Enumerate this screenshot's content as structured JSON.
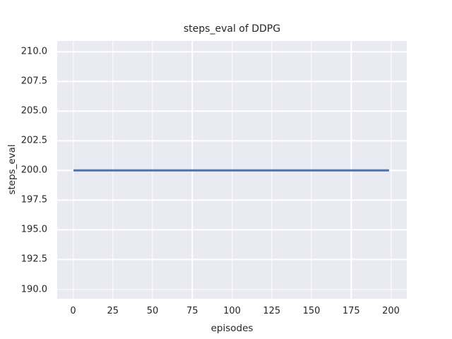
{
  "colors": {
    "figure_background": "#ffffff",
    "plot_background": "#eaeaf2",
    "grid": "#ffffff",
    "text": "#262626",
    "line": "#4c72b0"
  },
  "chart_data": {
    "type": "line",
    "title": "steps_eval of DDPG",
    "xlabel": "episodes",
    "ylabel": "steps_eval",
    "xlim": [
      -10,
      210
    ],
    "ylim": [
      189.2,
      210.9
    ],
    "grid": true,
    "legend_position": "none",
    "xticks": [
      {
        "value": 0,
        "label": "0"
      },
      {
        "value": 25,
        "label": "25"
      },
      {
        "value": 50,
        "label": "50"
      },
      {
        "value": 75,
        "label": "75"
      },
      {
        "value": 100,
        "label": "100"
      },
      {
        "value": 125,
        "label": "125"
      },
      {
        "value": 150,
        "label": "150"
      },
      {
        "value": 175,
        "label": "175"
      },
      {
        "value": 200,
        "label": "200"
      }
    ],
    "yticks": [
      {
        "value": 190.0,
        "label": "190.0"
      },
      {
        "value": 192.5,
        "label": "192.5"
      },
      {
        "value": 195.0,
        "label": "195.0"
      },
      {
        "value": 197.5,
        "label": "197.5"
      },
      {
        "value": 200.0,
        "label": "200.0"
      },
      {
        "value": 202.5,
        "label": "202.5"
      },
      {
        "value": 205.0,
        "label": "205.0"
      },
      {
        "value": 207.5,
        "label": "207.5"
      },
      {
        "value": 210.0,
        "label": "210.0"
      }
    ],
    "series": [
      {
        "name": "steps_eval",
        "color": "#4c72b0",
        "x": [
          0,
          199
        ],
        "y": [
          200.0,
          200.0
        ]
      }
    ]
  }
}
